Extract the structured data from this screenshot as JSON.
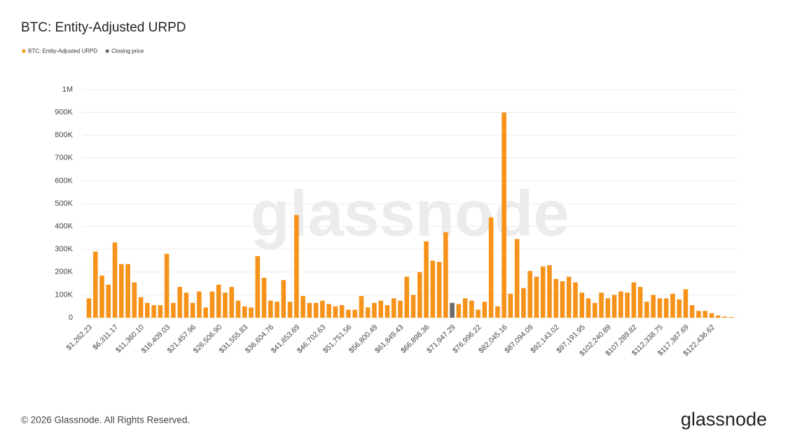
{
  "chart_data": {
    "type": "bar",
    "title": "BTC: Entity-Adjusted URPD",
    "categories": [
      "$1,262.23",
      null,
      null,
      null,
      "$6,311.17",
      null,
      null,
      null,
      "$11,360.10",
      null,
      null,
      null,
      "$16,409.03",
      null,
      null,
      null,
      "$21,457.96",
      null,
      null,
      null,
      "$26,506.90",
      null,
      null,
      null,
      "$31,555.83",
      null,
      null,
      null,
      "$36,604.76",
      null,
      null,
      null,
      "$41,653.69",
      null,
      null,
      null,
      "$46,702.63",
      null,
      null,
      null,
      "$51,751.56",
      null,
      null,
      null,
      "$56,800.49",
      null,
      null,
      null,
      "$61,849.43",
      null,
      null,
      null,
      "$66,898.36",
      null,
      null,
      null,
      "$71,947.29",
      null,
      null,
      null,
      "$76,996.22",
      null,
      null,
      null,
      "$82,045.16",
      null,
      null,
      null,
      "$87,094.09",
      null,
      null,
      null,
      "$92,143.02",
      null,
      null,
      null,
      "$97,191.95",
      null,
      null,
      null,
      "$102,240.89",
      null,
      null,
      null,
      "$107,289.82",
      null,
      null,
      null,
      "$112,338.75",
      null,
      null,
      null,
      "$117,387.69",
      null,
      null,
      null,
      "$122,436.62",
      null,
      null,
      null
    ],
    "series": [
      {
        "name": "BTC: Entity-Adjusted URPD",
        "color": "#f7931a",
        "values": [
          85000,
          290000,
          185000,
          145000,
          330000,
          235000,
          235000,
          155000,
          90000,
          65000,
          55000,
          55000,
          280000,
          65000,
          135000,
          110000,
          65000,
          115000,
          45000,
          115000,
          145000,
          110000,
          135000,
          75000,
          50000,
          45000,
          270000,
          175000,
          75000,
          70000,
          165000,
          70000,
          450000,
          95000,
          65000,
          65000,
          75000,
          60000,
          50000,
          55000,
          35000,
          35000,
          95000,
          45000,
          65000,
          75000,
          55000,
          85000,
          75000,
          180000,
          100000,
          200000,
          335000,
          250000,
          245000,
          375000,
          null,
          60000,
          85000,
          75000,
          35000,
          70000,
          440000,
          50000,
          900000,
          105000,
          345000,
          130000,
          205000,
          180000,
          225000,
          230000,
          170000,
          160000,
          180000,
          155000,
          110000,
          85000,
          65000,
          110000,
          85000,
          100000,
          115000,
          110000,
          155000,
          135000,
          70000,
          100000,
          85000,
          85000,
          105000,
          80000,
          125000,
          55000,
          30000,
          30000,
          20000,
          10000,
          5000,
          3000
        ]
      },
      {
        "name": "Closing price",
        "color": "#6b6b6b",
        "values": [
          null,
          null,
          null,
          null,
          null,
          null,
          null,
          null,
          null,
          null,
          null,
          null,
          null,
          null,
          null,
          null,
          null,
          null,
          null,
          null,
          null,
          null,
          null,
          null,
          null,
          null,
          null,
          null,
          null,
          null,
          null,
          null,
          null,
          null,
          null,
          null,
          null,
          null,
          null,
          null,
          null,
          null,
          null,
          null,
          null,
          null,
          null,
          null,
          null,
          null,
          null,
          null,
          null,
          null,
          null,
          null,
          65000,
          null,
          null,
          null,
          null,
          null,
          null,
          null,
          null,
          null,
          null,
          null,
          null,
          null,
          null,
          null,
          null,
          null,
          null,
          null,
          null,
          null,
          null,
          null,
          null,
          null,
          null,
          null,
          null,
          null,
          null,
          null,
          null,
          null,
          null,
          null,
          null,
          null,
          null,
          null,
          null,
          null,
          null,
          null
        ]
      }
    ],
    "ylim": [
      0,
      1000000
    ],
    "yticks": [
      0,
      {
        "value": 100000,
        "label": "100K"
      },
      {
        "value": 200000,
        "label": "200K"
      },
      {
        "value": 300000,
        "label": "300K"
      },
      {
        "value": 400000,
        "label": "400K"
      },
      {
        "value": 500000,
        "label": "500K"
      },
      {
        "value": 600000,
        "label": "600K"
      },
      {
        "value": 700000,
        "label": "700K"
      },
      {
        "value": 800000,
        "label": "800K"
      },
      {
        "value": 900000,
        "label": "900K"
      },
      {
        "value": 1000000,
        "label": "1M"
      }
    ],
    "grid": true
  },
  "watermark": "glassnode",
  "footer": "© 2026 Glassnode. All Rights Reserved.",
  "logo": "glassnode"
}
